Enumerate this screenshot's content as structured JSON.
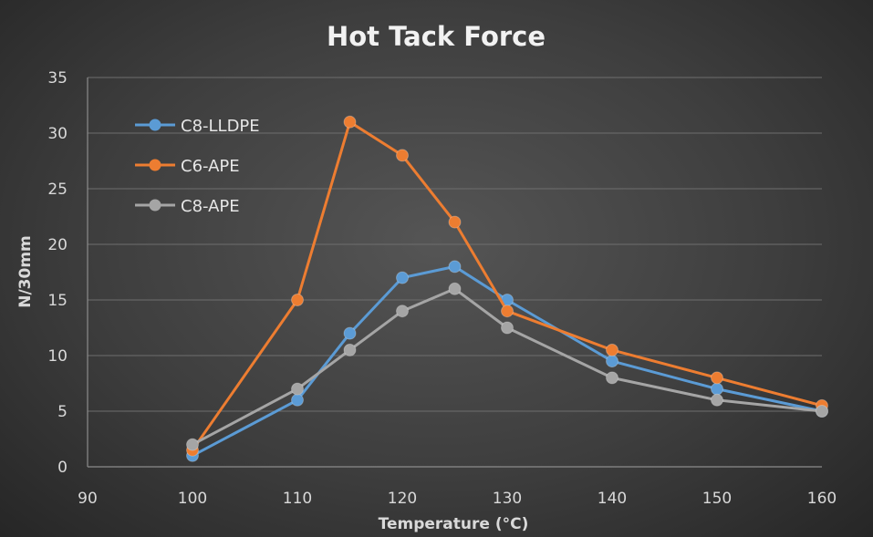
{
  "chart_data": {
    "type": "line",
    "title": "Hot Tack Force",
    "xlabel": "Temperature (°C)",
    "ylabel": "N/30mm",
    "xlim": [
      90,
      160
    ],
    "ylim": [
      0,
      35
    ],
    "xticks": [
      90,
      100,
      110,
      120,
      130,
      140,
      150,
      160
    ],
    "yticks": [
      0,
      5,
      10,
      15,
      20,
      25,
      30,
      35
    ],
    "grid": "horizontal",
    "legend_position": "top-left",
    "series": [
      {
        "name": "C8-LLDPE",
        "color": "#5b9bd5",
        "points": [
          [
            100,
            1
          ],
          [
            110,
            6
          ],
          [
            115,
            12
          ],
          [
            120,
            17
          ],
          [
            125,
            18
          ],
          [
            130,
            15
          ],
          [
            140,
            9.5
          ],
          [
            150,
            7
          ],
          [
            160,
            5
          ]
        ]
      },
      {
        "name": "C6-APE",
        "color": "#ed7d31",
        "points": [
          [
            100,
            1.5
          ],
          [
            110,
            15
          ],
          [
            115,
            31
          ],
          [
            120,
            28
          ],
          [
            125,
            22
          ],
          [
            130,
            14
          ],
          [
            140,
            10.5
          ],
          [
            150,
            8
          ],
          [
            160,
            5.5
          ]
        ]
      },
      {
        "name": "C8-APE",
        "color": "#a5a5a5",
        "points": [
          [
            100,
            2
          ],
          [
            110,
            7
          ],
          [
            115,
            10.5
          ],
          [
            120,
            14
          ],
          [
            125,
            16
          ],
          [
            130,
            12.5
          ],
          [
            140,
            8
          ],
          [
            150,
            6
          ],
          [
            160,
            5
          ]
        ]
      }
    ]
  }
}
